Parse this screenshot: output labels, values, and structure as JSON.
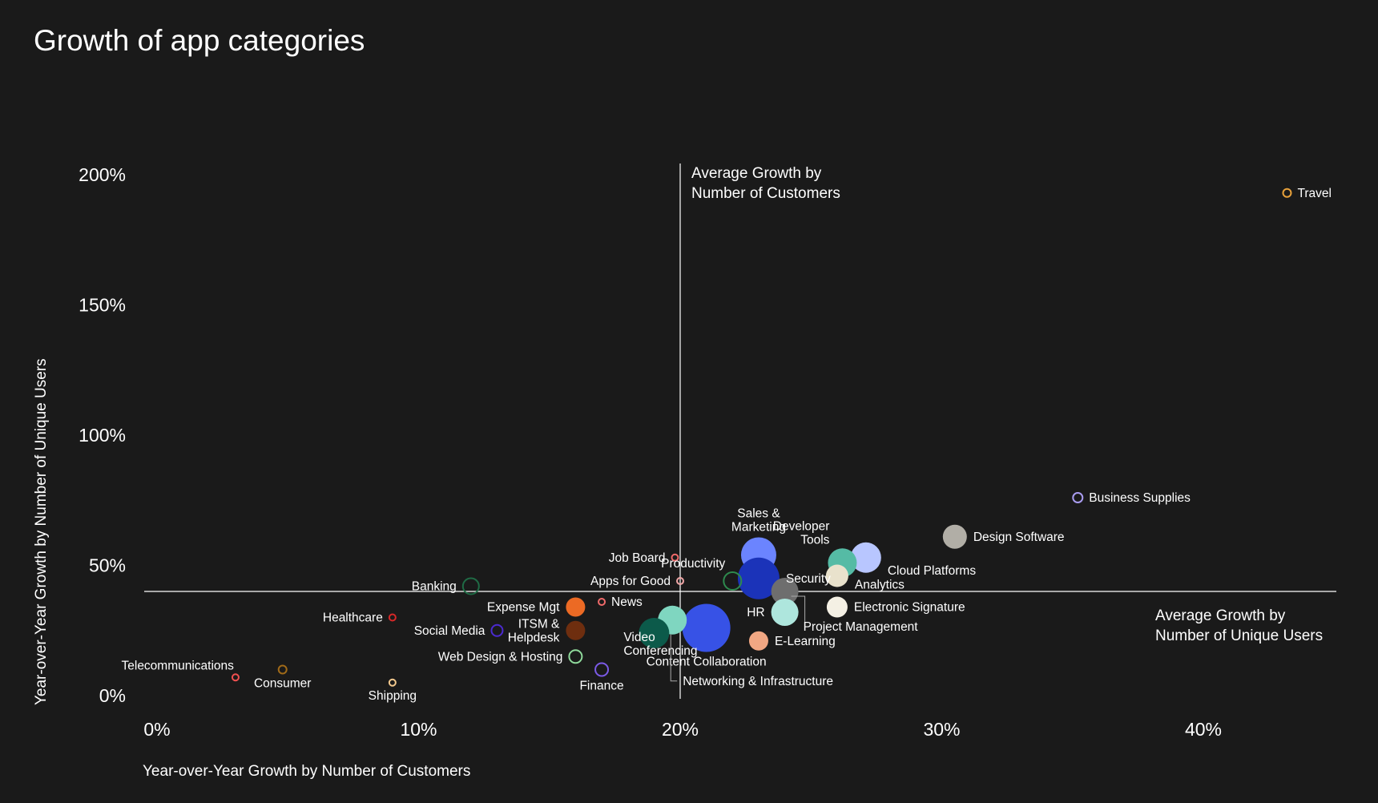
{
  "chart_data": {
    "type": "scatter",
    "title": "Growth of app categories",
    "xlabel": "Year-over-Year Growth by Number of Customers",
    "ylabel": "Year-over-Year Growth by Number of Unique Users",
    "xlim": [
      0,
      45.5
    ],
    "ylim": [
      0,
      205
    ],
    "x_ticks": [
      {
        "value": 0,
        "label": "0%"
      },
      {
        "value": 10,
        "label": "10%"
      },
      {
        "value": 20,
        "label": "20%"
      },
      {
        "value": 30,
        "label": "30%"
      },
      {
        "value": 40,
        "label": "40%"
      }
    ],
    "y_ticks": [
      {
        "value": 0,
        "label": "0%"
      },
      {
        "value": 50,
        "label": "50%"
      },
      {
        "value": 100,
        "label": "100%"
      },
      {
        "value": 150,
        "label": "150%"
      },
      {
        "value": 200,
        "label": "200%"
      }
    ],
    "reference_lines": [
      {
        "axis": "x",
        "value": 20,
        "label": [
          "Average Growth by",
          "Number of Customers"
        ]
      },
      {
        "axis": "y",
        "value": 40,
        "label": [
          "Average Growth by",
          "Number of Unique Users"
        ]
      }
    ],
    "points": [
      {
        "name": "Travel",
        "label": [
          "Travel"
        ],
        "x": 43.2,
        "y": 193,
        "size": 5,
        "color": "#e9a23b",
        "fill": false,
        "label_pos": "right"
      },
      {
        "name": "Business Supplies",
        "label": [
          "Business Supplies"
        ],
        "x": 35.2,
        "y": 76,
        "size": 6,
        "color": "#a99cf0",
        "fill": false,
        "label_pos": "right"
      },
      {
        "name": "Design Software",
        "label": [
          "Design Software"
        ],
        "x": 30.5,
        "y": 61,
        "size": 15,
        "color": "#b1aea6",
        "fill": true,
        "label_pos": "right"
      },
      {
        "name": "Cloud Platforms",
        "label": [
          "Cloud Platforms"
        ],
        "x": 27.1,
        "y": 53,
        "size": 19,
        "color": "#b8c6ff",
        "fill": true,
        "label_pos": "right-below"
      },
      {
        "name": "Developer Tools",
        "label": [
          "Developer",
          "Tools"
        ],
        "x": 26.2,
        "y": 51,
        "size": 18,
        "color": "#55bba5",
        "fill": true,
        "label_pos": "above-left"
      },
      {
        "name": "Analytics",
        "label": [
          "Analytics"
        ],
        "x": 26.0,
        "y": 46,
        "size": 14,
        "color": "#e9e2cc",
        "fill": true,
        "label_pos": "right-below"
      },
      {
        "name": "Sales & Marketing",
        "label": [
          "Sales &",
          "Marketing"
        ],
        "x": 23.0,
        "y": 54,
        "size": 22,
        "color": "#6b84ff",
        "fill": true,
        "label_pos": "above"
      },
      {
        "name": "Security",
        "label": [
          "Security"
        ],
        "x": 23.0,
        "y": 45,
        "size": 26,
        "color": "#1b33b9",
        "fill": true,
        "label_pos": "right"
      },
      {
        "name": "Project Management",
        "label": [
          "Project Management"
        ],
        "x": 24.0,
        "y": 40,
        "size": 17,
        "color": "#6e6e6e",
        "fill": true,
        "label_pos": "below-right-leader"
      },
      {
        "name": "HR",
        "label": [
          "HR"
        ],
        "x": 24.0,
        "y": 32,
        "size": 17,
        "color": "#aee6dd",
        "fill": true,
        "label_pos": "left"
      },
      {
        "name": "Electronic Signature",
        "label": [
          "Electronic Signature"
        ],
        "x": 26.0,
        "y": 34,
        "size": 13,
        "color": "#f4f0e4",
        "fill": true,
        "label_pos": "right"
      },
      {
        "name": "E-Learning",
        "label": [
          "E-Learning"
        ],
        "x": 23.0,
        "y": 21,
        "size": 12,
        "color": "#f1a783",
        "fill": true,
        "label_pos": "right"
      },
      {
        "name": "Productivity",
        "label": [
          "Productivity"
        ],
        "x": 22.0,
        "y": 44,
        "size": 11,
        "color": "#2e8a4e",
        "fill": false,
        "label_pos": "above-left"
      },
      {
        "name": "Content Collaboration",
        "label": [
          "Content Collaboration"
        ],
        "x": 21.0,
        "y": 26,
        "size": 30,
        "color": "#3752e6",
        "fill": true,
        "label_pos": "below"
      },
      {
        "name": "Networking & Infrastructure",
        "label": [
          "Networking & Infrastructure"
        ],
        "x": 19.7,
        "y": 29,
        "size": 18,
        "color": "#7fd6c0",
        "fill": true,
        "label_pos": "below-leader"
      },
      {
        "name": "Video Conferencing",
        "label": [
          "Video",
          "Conferencing"
        ],
        "x": 19.0,
        "y": 24,
        "size": 19,
        "color": "#0c5a4a",
        "fill": true,
        "label_pos": "below-left"
      },
      {
        "name": "Job Board",
        "label": [
          "Job Board"
        ],
        "x": 19.8,
        "y": 53,
        "size": 4,
        "color": "#f06a6a",
        "fill": false,
        "label_pos": "left"
      },
      {
        "name": "Apps for Good",
        "label": [
          "Apps for Good"
        ],
        "x": 20.0,
        "y": 44,
        "size": 4,
        "color": "#f1a7a7",
        "fill": false,
        "label_pos": "left"
      },
      {
        "name": "News",
        "label": [
          "News"
        ],
        "x": 17.0,
        "y": 36,
        "size": 4,
        "color": "#f06a6a",
        "fill": false,
        "label_pos": "right"
      },
      {
        "name": "Finance",
        "label": [
          "Finance"
        ],
        "x": 17.0,
        "y": 10,
        "size": 8,
        "color": "#7b5ae6",
        "fill": false,
        "label_pos": "below"
      },
      {
        "name": "Expense Mgt",
        "label": [
          "Expense Mgt"
        ],
        "x": 16.0,
        "y": 34,
        "size": 12,
        "color": "#ec6a24",
        "fill": true,
        "label_pos": "left"
      },
      {
        "name": "ITSM & Helpdesk",
        "label": [
          "ITSM &",
          "Helpdesk"
        ],
        "x": 16.0,
        "y": 25,
        "size": 12,
        "color": "#6e2e0f",
        "fill": true,
        "label_pos": "left"
      },
      {
        "name": "Web Design & Hosting",
        "label": [
          "Web Design & Hosting"
        ],
        "x": 16.0,
        "y": 15,
        "size": 8,
        "color": "#8fd99b",
        "fill": false,
        "label_pos": "left"
      },
      {
        "name": "Social Media",
        "label": [
          "Social Media"
        ],
        "x": 13.0,
        "y": 25,
        "size": 7,
        "color": "#4b2ad1",
        "fill": false,
        "label_pos": "left"
      },
      {
        "name": "Banking",
        "label": [
          "Banking"
        ],
        "x": 12.0,
        "y": 42,
        "size": 10,
        "color": "#1f6b45",
        "fill": false,
        "label_pos": "left"
      },
      {
        "name": "Healthcare",
        "label": [
          "Healthcare"
        ],
        "x": 9.0,
        "y": 30,
        "size": 4,
        "color": "#d62828",
        "fill": false,
        "label_pos": "left"
      },
      {
        "name": "Shipping",
        "label": [
          "Shipping"
        ],
        "x": 9.0,
        "y": 5,
        "size": 4,
        "color": "#f3c98e",
        "fill": false,
        "label_pos": "below"
      },
      {
        "name": "Consumer",
        "label": [
          "Consumer"
        ],
        "x": 4.8,
        "y": 10,
        "size": 5,
        "color": "#a06a18",
        "fill": false,
        "label_pos": "below"
      },
      {
        "name": "Telecommunications",
        "label": [
          "Telecommunications"
        ],
        "x": 3.0,
        "y": 7,
        "size": 4,
        "color": "#f05050",
        "fill": false,
        "label_pos": "above-left"
      }
    ]
  }
}
